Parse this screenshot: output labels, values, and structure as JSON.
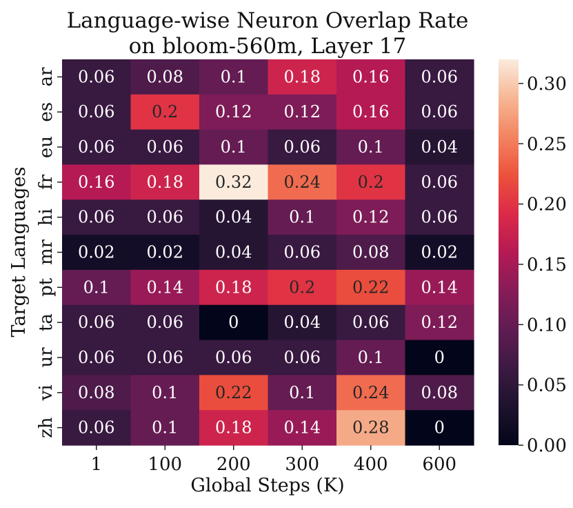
{
  "chart_data": {
    "type": "heatmap",
    "title": [
      "Language-wise Neuron Overlap Rate",
      "on bloom-560m, Layer 17"
    ],
    "xlabel": "Global Steps (K)",
    "ylabel": "Target Languages",
    "x_categories": [
      "1",
      "100",
      "200",
      "300",
      "400",
      "600"
    ],
    "y_categories": [
      "ar",
      "es",
      "eu",
      "fr",
      "hi",
      "mr",
      "pt",
      "ta",
      "ur",
      "vi",
      "zh"
    ],
    "values": [
      [
        0.06,
        0.08,
        0.1,
        0.18,
        0.16,
        0.06
      ],
      [
        0.06,
        0.2,
        0.12,
        0.12,
        0.16,
        0.06
      ],
      [
        0.06,
        0.06,
        0.1,
        0.06,
        0.1,
        0.04
      ],
      [
        0.16,
        0.18,
        0.32,
        0.24,
        0.2,
        0.06
      ],
      [
        0.06,
        0.06,
        0.04,
        0.1,
        0.12,
        0.06
      ],
      [
        0.02,
        0.02,
        0.04,
        0.06,
        0.08,
        0.02
      ],
      [
        0.1,
        0.14,
        0.18,
        0.2,
        0.22,
        0.14
      ],
      [
        0.06,
        0.06,
        0,
        0.04,
        0.06,
        0.12
      ],
      [
        0.06,
        0.06,
        0.06,
        0.06,
        0.1,
        0
      ],
      [
        0.08,
        0.1,
        0.22,
        0.1,
        0.24,
        0.08
      ],
      [
        0.06,
        0.1,
        0.18,
        0.14,
        0.28,
        0
      ]
    ],
    "colormap": "rocket",
    "vmin": 0,
    "vmax": 0.32,
    "colorbar_ticks": [
      "0.00",
      "0.05",
      "0.10",
      "0.15",
      "0.20",
      "0.25",
      "0.30"
    ],
    "colorbar_tick_values": [
      0,
      0.05,
      0.1,
      0.15,
      0.2,
      0.25,
      0.3
    ],
    "annotated": true
  }
}
